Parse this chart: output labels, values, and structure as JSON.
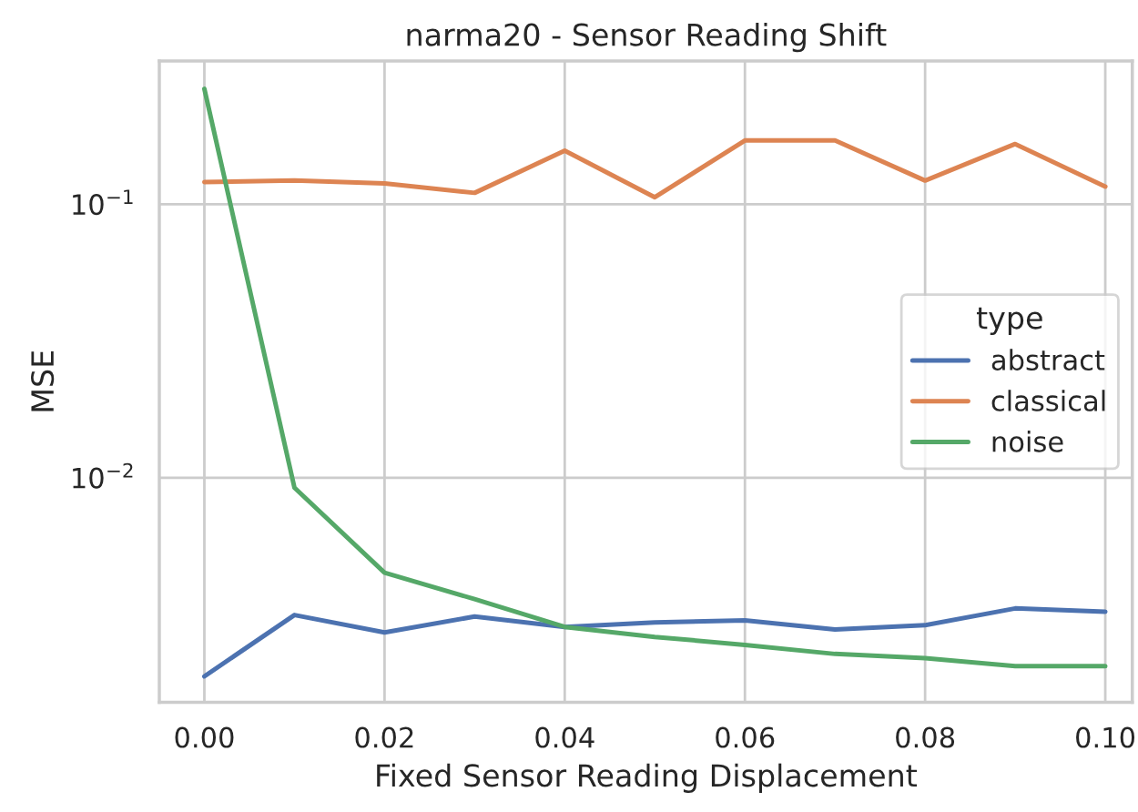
{
  "chart_data": {
    "type": "line",
    "title": "narma20 - Sensor Reading Shift",
    "xlabel": "Fixed Sensor Reading Displacement",
    "ylabel": "MSE",
    "legend_title": "type",
    "legend": "right",
    "x": [
      0.0,
      0.01,
      0.02,
      0.03,
      0.04,
      0.05,
      0.06,
      0.07,
      0.08,
      0.09,
      0.1
    ],
    "series": [
      {
        "name": "abstract",
        "color": "#4c72b0",
        "values": [
          0.00188,
          0.00315,
          0.00272,
          0.00311,
          0.00285,
          0.00296,
          0.00301,
          0.00279,
          0.00289,
          0.00333,
          0.00324
        ]
      },
      {
        "name": "classical",
        "color": "#dd8452",
        "values": [
          0.1205,
          0.122,
          0.119,
          0.11,
          0.157,
          0.106,
          0.171,
          0.171,
          0.122,
          0.166,
          0.116
        ]
      },
      {
        "name": "noise",
        "color": "#55a868",
        "values": [
          0.264,
          0.0092,
          0.0045,
          0.0036,
          0.00285,
          0.00262,
          0.00245,
          0.00227,
          0.00219,
          0.00205,
          0.00205
        ]
      }
    ],
    "log": "y",
    "xlim": [
      -0.005,
      0.103
    ],
    "ylim": [
      0.00151,
      0.334
    ],
    "xticks": [
      {
        "value": 0.0,
        "label": "0.00"
      },
      {
        "value": 0.02,
        "label": "0.02"
      },
      {
        "value": 0.04,
        "label": "0.04"
      },
      {
        "value": 0.06,
        "label": "0.06"
      },
      {
        "value": 0.08,
        "label": "0.08"
      },
      {
        "value": 0.1,
        "label": "0.10"
      }
    ],
    "yticks": [
      {
        "value": 0.01,
        "label": "10$^{−2}$"
      },
      {
        "value": 0.1,
        "label": "10$^{−1}$"
      }
    ],
    "grid": true,
    "marker": "none",
    "line_style": "solid"
  }
}
